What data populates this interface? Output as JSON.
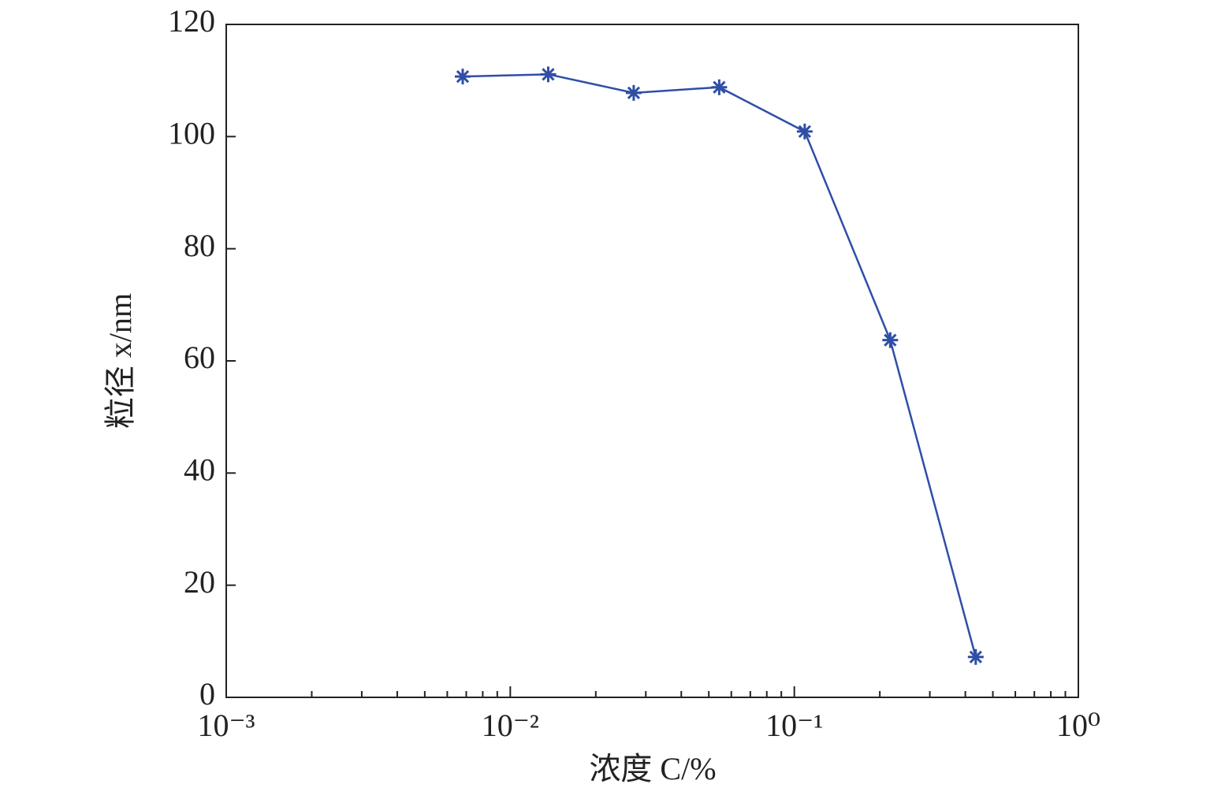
{
  "chart_data": {
    "type": "line",
    "xlabel": "浓度 C/%",
    "ylabel": "粒径 x/nm",
    "x": [
      0.0068,
      0.0136,
      0.0272,
      0.0544,
      0.1088,
      0.2176,
      0.4352
    ],
    "series": [
      {
        "color": "#2f4ea6",
        "marker": "asterisk",
        "values": [
          110.7,
          111.1,
          107.8,
          108.8,
          100.9,
          63.7,
          7.2
        ]
      }
    ],
    "xscale": "log",
    "xlim": [
      0.001,
      1
    ],
    "xticks": [
      {
        "value": 0.001,
        "label": "10⁻³"
      },
      {
        "value": 0.01,
        "label": "10⁻²"
      },
      {
        "value": 0.1,
        "label": "10⁻¹"
      },
      {
        "value": 1,
        "label": "10⁰"
      }
    ],
    "xminorticks": [
      0.002,
      0.003,
      0.004,
      0.005,
      0.006,
      0.007,
      0.008,
      0.009,
      0.02,
      0.03,
      0.04,
      0.05,
      0.06,
      0.07,
      0.08,
      0.09,
      0.2,
      0.3,
      0.4,
      0.5,
      0.6,
      0.7,
      0.8,
      0.9
    ],
    "ylim": [
      0,
      120
    ],
    "yticks": [
      0,
      20,
      40,
      60,
      80,
      100,
      120
    ],
    "grid": false
  }
}
